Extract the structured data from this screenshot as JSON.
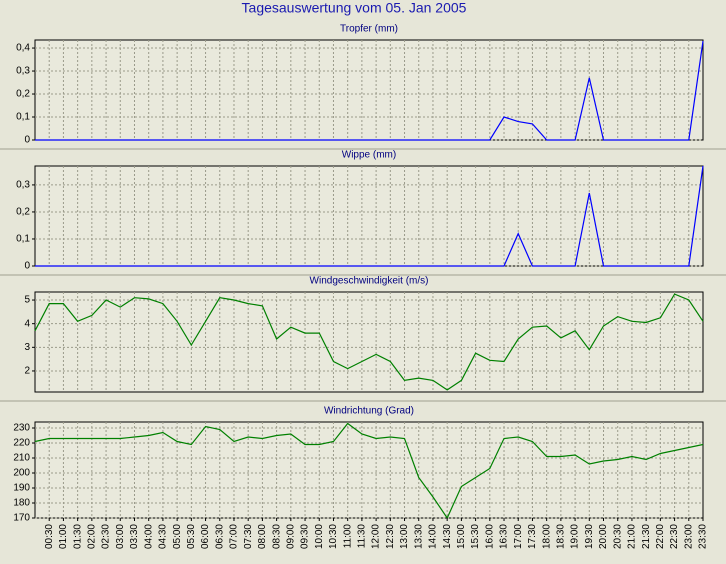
{
  "title": "Tagesauswertung vom 05. Jan 2005",
  "chart_data": [
    {
      "type": "line",
      "title": "Tropfer (mm)",
      "color": "#0000ff",
      "grid": true,
      "values": [
        0,
        0,
        0,
        0,
        0,
        0,
        0,
        0,
        0,
        0,
        0,
        0,
        0,
        0,
        0,
        0,
        0,
        0,
        0,
        0,
        0,
        0,
        0,
        0,
        0,
        0,
        0,
        0,
        0,
        0,
        0,
        0,
        0,
        0.1,
        0.08,
        0.07,
        0,
        0,
        0,
        0.27,
        0,
        0,
        0,
        0,
        0,
        0,
        0,
        0.43
      ],
      "ylim": [
        0,
        0.435
      ],
      "yticks": [
        0,
        {
          "value": 0.1,
          "label": "0,1"
        },
        {
          "value": 0.2,
          "label": "0,2"
        },
        {
          "value": 0.3,
          "label": "0,3"
        },
        {
          "value": 0.4,
          "label": "0,4"
        }
      ]
    },
    {
      "type": "line",
      "title": "Wippe (mm)",
      "color": "#0000ff",
      "grid": true,
      "values": [
        0,
        0,
        0,
        0,
        0,
        0,
        0,
        0,
        0,
        0,
        0,
        0,
        0,
        0,
        0,
        0,
        0,
        0,
        0,
        0,
        0,
        0,
        0,
        0,
        0,
        0,
        0,
        0,
        0,
        0,
        0,
        0,
        0,
        0,
        0.12,
        0,
        0,
        0,
        0,
        0.27,
        0,
        0,
        0,
        0,
        0,
        0,
        0,
        0.37
      ],
      "ylim": [
        0,
        0.37
      ],
      "yticks": [
        0,
        {
          "value": 0.1,
          "label": "0,1"
        },
        {
          "value": 0.2,
          "label": "0,2"
        },
        {
          "value": 0.3,
          "label": "0,3"
        }
      ]
    },
    {
      "type": "line",
      "title": "Windgeschwindigkeit (m/s)",
      "color": "#008000",
      "grid": true,
      "values": [
        3.7,
        4.85,
        4.85,
        4.1,
        4.35,
        5.0,
        4.7,
        5.1,
        5.05,
        4.85,
        4.1,
        3.1,
        4.1,
        5.1,
        5.0,
        4.85,
        4.75,
        3.35,
        3.85,
        3.6,
        3.6,
        2.4,
        2.1,
        2.4,
        2.7,
        2.4,
        1.6,
        1.7,
        1.6,
        1.2,
        1.6,
        2.75,
        2.45,
        2.4,
        3.35,
        3.85,
        3.9,
        3.4,
        3.7,
        2.9,
        3.9,
        4.3,
        4.1,
        4.05,
        4.25,
        5.25,
        5.0,
        4.1
      ],
      "ylim": [
        1.11,
        5.34
      ],
      "yticks": [
        2,
        3,
        4,
        5
      ]
    },
    {
      "type": "line",
      "title": "Windrichtung (Grad)",
      "color": "#008000",
      "grid": true,
      "values": [
        221,
        223,
        223,
        223,
        223,
        223,
        223,
        224,
        225,
        227,
        221,
        219,
        231,
        229,
        221,
        224,
        223,
        225,
        226,
        219,
        219,
        221,
        233,
        226,
        223,
        224,
        223,
        197,
        184,
        170,
        191,
        197,
        203,
        223,
        224,
        221,
        211,
        211,
        212,
        206,
        208,
        209,
        211,
        209,
        213,
        215,
        217,
        219
      ],
      "ylim": [
        170,
        234
      ],
      "yticks": [
        170,
        180,
        190,
        200,
        210,
        220,
        230
      ],
      "categories": [
        null,
        "00:30",
        "01:00",
        "01:30",
        "02:00",
        "02:30",
        "03:00",
        "03:30",
        "04:00",
        "04:30",
        "05:00",
        "05:30",
        "06:00",
        "06:30",
        "07:00",
        "07:30",
        "08:00",
        "08:30",
        "09:00",
        "09:30",
        "10:00",
        "10:30",
        "11:00",
        "11:30",
        "12:00",
        "12:30",
        "13:00",
        "13:30",
        "14:00",
        "14:30",
        "15:00",
        "15:30",
        "16:00",
        "16:30",
        "17:00",
        "17:30",
        "18:00",
        "18:30",
        "19:00",
        "19:30",
        "20:00",
        "20:30",
        "21:00",
        "21:30",
        "22:00",
        "22:30",
        "23:00",
        "23:30"
      ]
    }
  ]
}
